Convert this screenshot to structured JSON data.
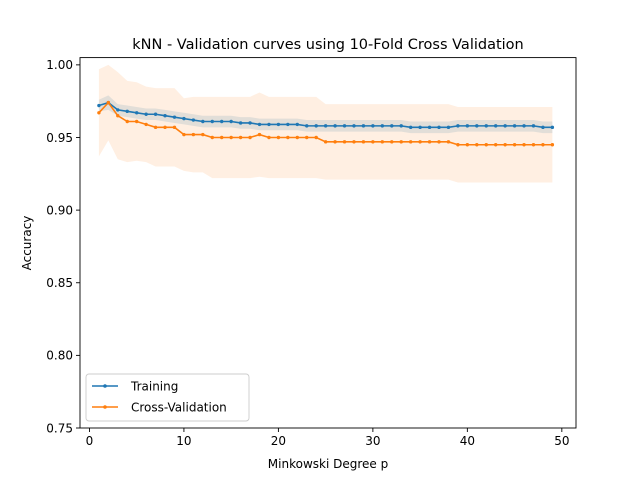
{
  "chart_data": {
    "type": "line",
    "title": "kNN - Validation curves using 10-Fold Cross Validation",
    "xlabel": "Minkowski Degree p",
    "ylabel": "Accuracy",
    "xlim": [
      -1,
      51.5
    ],
    "ylim": [
      0.75,
      1.005
    ],
    "xticks": [
      0,
      10,
      20,
      30,
      40,
      50
    ],
    "xtick_labels": [
      "0",
      "10",
      "20",
      "30",
      "40",
      "50"
    ],
    "yticks": [
      0.75,
      0.8,
      0.85,
      0.9,
      0.95,
      1.0
    ],
    "ytick_labels": [
      "0.75",
      "0.80",
      "0.85",
      "0.90",
      "0.95",
      "1.00"
    ],
    "grid": false,
    "legend_position": "lower-left",
    "x": [
      1,
      2,
      3,
      4,
      5,
      6,
      7,
      8,
      9,
      10,
      11,
      12,
      13,
      14,
      15,
      16,
      17,
      18,
      19,
      20,
      21,
      22,
      23,
      24,
      25,
      26,
      27,
      28,
      29,
      30,
      31,
      32,
      33,
      34,
      35,
      36,
      37,
      38,
      39,
      40,
      41,
      42,
      43,
      44,
      45,
      46,
      47,
      48,
      49
    ],
    "series": [
      {
        "name": "Training",
        "color": "#1f77b4",
        "values": [
          0.972,
          0.974,
          0.969,
          0.968,
          0.967,
          0.966,
          0.966,
          0.965,
          0.964,
          0.963,
          0.962,
          0.961,
          0.961,
          0.961,
          0.961,
          0.96,
          0.96,
          0.959,
          0.959,
          0.959,
          0.959,
          0.959,
          0.958,
          0.958,
          0.958,
          0.958,
          0.958,
          0.958,
          0.958,
          0.958,
          0.958,
          0.958,
          0.958,
          0.957,
          0.957,
          0.957,
          0.957,
          0.957,
          0.958,
          0.958,
          0.958,
          0.958,
          0.958,
          0.958,
          0.958,
          0.958,
          0.958,
          0.957,
          0.957
        ],
        "band_half_width": [
          0.004,
          0.005,
          0.004,
          0.004,
          0.004,
          0.004,
          0.004,
          0.004,
          0.004,
          0.004,
          0.004,
          0.004,
          0.004,
          0.004,
          0.004,
          0.004,
          0.004,
          0.004,
          0.004,
          0.004,
          0.004,
          0.004,
          0.004,
          0.004,
          0.004,
          0.004,
          0.004,
          0.004,
          0.004,
          0.004,
          0.004,
          0.004,
          0.004,
          0.004,
          0.004,
          0.004,
          0.004,
          0.004,
          0.004,
          0.004,
          0.004,
          0.004,
          0.004,
          0.004,
          0.004,
          0.004,
          0.004,
          0.004,
          0.004
        ]
      },
      {
        "name": "Cross-Validation",
        "color": "#ff7f0e",
        "values": [
          0.967,
          0.974,
          0.965,
          0.961,
          0.961,
          0.959,
          0.957,
          0.957,
          0.957,
          0.952,
          0.952,
          0.952,
          0.95,
          0.95,
          0.95,
          0.95,
          0.95,
          0.952,
          0.95,
          0.95,
          0.95,
          0.95,
          0.95,
          0.95,
          0.947,
          0.947,
          0.947,
          0.947,
          0.947,
          0.947,
          0.947,
          0.947,
          0.947,
          0.947,
          0.947,
          0.947,
          0.947,
          0.947,
          0.945,
          0.945,
          0.945,
          0.945,
          0.945,
          0.945,
          0.945,
          0.945,
          0.945,
          0.945,
          0.945
        ],
        "band_half_width": [
          0.03,
          0.026,
          0.03,
          0.028,
          0.027,
          0.026,
          0.027,
          0.027,
          0.027,
          0.025,
          0.026,
          0.026,
          0.028,
          0.028,
          0.028,
          0.028,
          0.028,
          0.029,
          0.028,
          0.028,
          0.028,
          0.028,
          0.028,
          0.028,
          0.026,
          0.026,
          0.026,
          0.026,
          0.026,
          0.026,
          0.026,
          0.026,
          0.026,
          0.026,
          0.026,
          0.026,
          0.026,
          0.026,
          0.026,
          0.026,
          0.026,
          0.026,
          0.026,
          0.026,
          0.026,
          0.026,
          0.026,
          0.026,
          0.026
        ]
      }
    ]
  }
}
